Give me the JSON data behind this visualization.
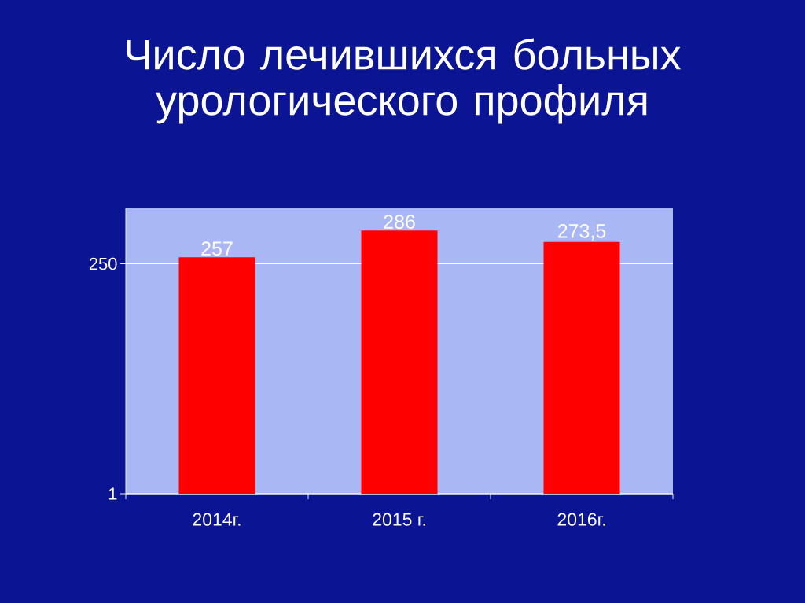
{
  "chart_data": {
    "type": "bar",
    "title": "Число лечившихся больных урологического профиля",
    "categories": [
      "2014г.",
      "2015 г.",
      "2016г."
    ],
    "values": [
      257,
      286,
      273.5
    ],
    "color": "#ff0000",
    "value_labels": [
      "257",
      "286",
      "273,5"
    ],
    "ylim": [
      1,
      310
    ],
    "yticks": [
      1,
      250
    ],
    "grid": "y"
  }
}
